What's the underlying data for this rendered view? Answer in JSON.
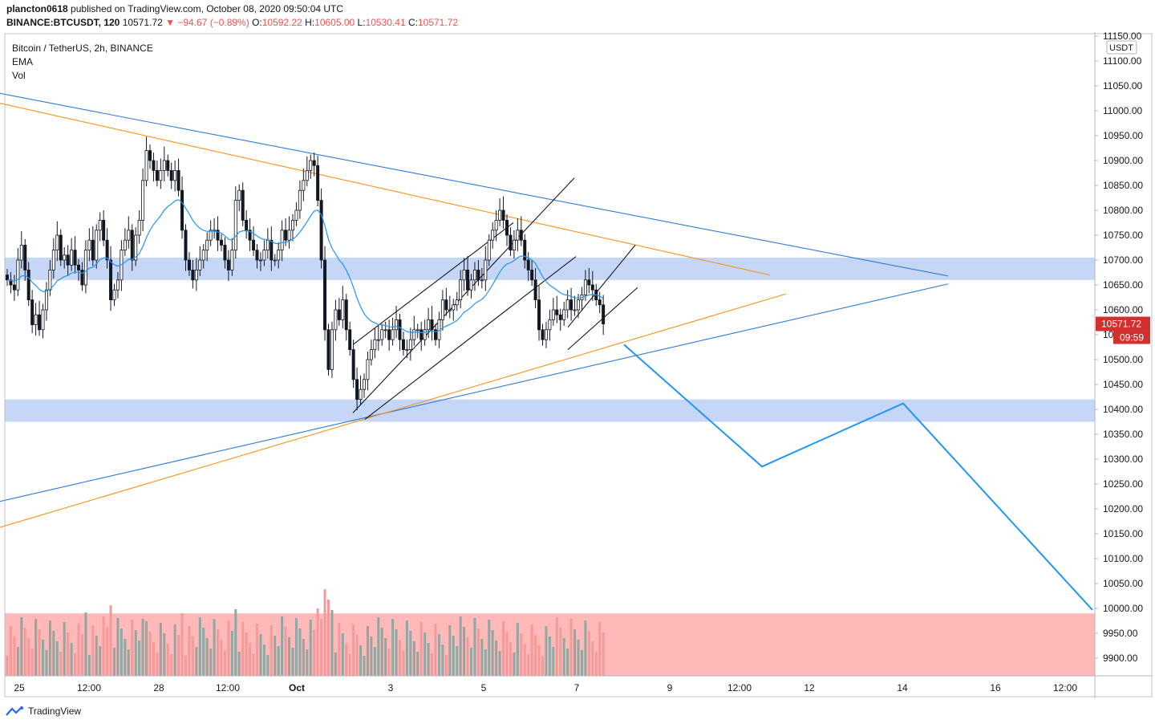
{
  "header": {
    "author": "plancton0618",
    "published": "published on TradingView.com, October 08, 2020 09:50:04 UTC",
    "symbol": "BINANCE:BTCUSDT, 120",
    "last": "10571.72",
    "change": "▼ −94.67 (−0.89%)",
    "o_label": "O:",
    "o": "10592.22",
    "h_label": "H:",
    "h": "10605.00",
    "l_label": "L:",
    "l": "10530.41",
    "c_label": "C:",
    "c": "10571.72"
  },
  "legend": {
    "title": "Bitcoin / TetherUS, 2h, BINANCE",
    "ema": "EMA",
    "vol": "Vol"
  },
  "footer": {
    "brand": "TradingView"
  },
  "colors": {
    "candle_up": "#ffffff",
    "candle_down": "#131722",
    "ema": "#2196f3",
    "blue_line": "#2e7bd6",
    "orange_line": "#f7931a",
    "zone": "#c5d6f7",
    "vol_zone": "#ffb9b9",
    "vol_up": "#8fa8a4",
    "vol_down": "#f49a9a",
    "price_tag": "#d32f2f",
    "projection": "#2196f3"
  },
  "chart_data": {
    "type": "candlestick",
    "currency_label": "USDT",
    "ylim": [
      9860,
      11155
    ],
    "y_ticks": [
      11150,
      11100,
      11050,
      11000,
      10950,
      10900,
      10850,
      10800,
      10750,
      10700,
      10650,
      10600,
      10550,
      10500,
      10450,
      10400,
      10350,
      10300,
      10250,
      10200,
      10150,
      10100,
      10050,
      10000,
      9950,
      9900
    ],
    "x_labels": [
      "25",
      "12:00",
      "28",
      "12:00",
      "Oct",
      "3",
      "5",
      "7",
      "9",
      "12:00",
      "12",
      "14",
      "16",
      "12:00"
    ],
    "last_price": "10571.72",
    "countdown": "09:59",
    "candles_close": [
      10660,
      10650,
      10640,
      10700,
      10730,
      10680,
      10620,
      10570,
      10590,
      10560,
      10600,
      10640,
      10680,
      10720,
      10750,
      10700,
      10710,
      10690,
      10720,
      10690,
      10680,
      10650,
      10720,
      10740,
      10700,
      10760,
      10780,
      10740,
      10700,
      10620,
      10640,
      10660,
      10720,
      10740,
      10760,
      10700,
      10750,
      10780,
      10860,
      10920,
      10900,
      10880,
      10860,
      10880,
      10900,
      10880,
      10860,
      10880,
      10840,
      10760,
      10700,
      10680,
      10660,
      10680,
      10700,
      10720,
      10740,
      10760,
      10760,
      10740,
      10730,
      10700,
      10680,
      10720,
      10820,
      10840,
      10780,
      10760,
      10740,
      10720,
      10700,
      10700,
      10720,
      10740,
      10700,
      10700,
      10720,
      10760,
      10740,
      10760,
      10780,
      10800,
      10840,
      10860,
      10880,
      10900,
      10890,
      10820,
      10700,
      10560,
      10480,
      10560,
      10600,
      10580,
      10620,
      10560,
      10520,
      10460,
      10420,
      10440,
      10460,
      10500,
      10520,
      10540,
      10540,
      10560,
      10560,
      10540,
      10560,
      10580,
      10540,
      10520,
      10520,
      10540,
      10560,
      10560,
      10540,
      10560,
      10580,
      10560,
      10540,
      10580,
      10620,
      10600,
      10600,
      10610,
      10620,
      10660,
      10680,
      10640,
      10660,
      10680,
      10660,
      10660,
      10700,
      10740,
      10760,
      10780,
      10800,
      10780,
      10750,
      10720,
      10740,
      10760,
      10740,
      10700,
      10680,
      10660,
      10620,
      10560,
      10540,
      10560,
      10580,
      10600,
      10590,
      10580,
      10600,
      10620,
      10600,
      10600,
      10620,
      10630,
      10660,
      10650,
      10640,
      10620,
      10610,
      10571.72
    ],
    "ema_note": "EMA(20) of close",
    "zones": [
      {
        "from": 10660,
        "to": 10705
      },
      {
        "from": 10375,
        "to": 10420
      }
    ],
    "trend_lines": [
      {
        "color": "blue",
        "from": [
          0,
          11035
        ],
        "to": [
          1182,
          10668
        ]
      },
      {
        "color": "orange",
        "from": [
          0,
          11015
        ],
        "to": [
          960,
          10670
        ]
      },
      {
        "color": "blue",
        "from": [
          0,
          10215
        ],
        "to": [
          1182,
          10652
        ]
      },
      {
        "color": "orange",
        "from": [
          0,
          10163
        ],
        "to": [
          980,
          10632
        ]
      }
    ],
    "projection": [
      {
        "x": 778,
        "y": 10530
      },
      {
        "x": 950,
        "y": 10285
      },
      {
        "x": 1126,
        "y": 10412
      },
      {
        "x": 1362,
        "y": 9997
      }
    ]
  }
}
